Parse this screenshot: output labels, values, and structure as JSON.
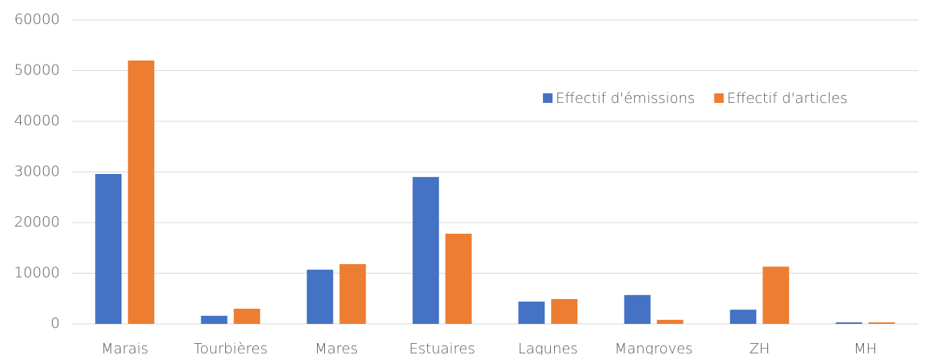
{
  "chart_data": {
    "type": "bar",
    "categories": [
      "Marais",
      "Tourbières",
      "Mares",
      "Estuaires",
      "Lagunes",
      "Mangroves",
      "ZH",
      "MH"
    ],
    "series": [
      {
        "name": "Effectif d'émissions",
        "color": "#4472c4",
        "values": [
          29600,
          1600,
          10700,
          29000,
          4400,
          5700,
          2800,
          300
        ]
      },
      {
        "name": "Effectif d'articles",
        "color": "#ed7d31",
        "values": [
          52000,
          3000,
          11800,
          17800,
          4900,
          800,
          11300,
          300
        ]
      }
    ],
    "ylim": [
      0,
      60000
    ],
    "yticks": [
      0,
      10000,
      20000,
      30000,
      40000,
      50000,
      60000
    ],
    "grid": true,
    "legend": "upper right"
  }
}
